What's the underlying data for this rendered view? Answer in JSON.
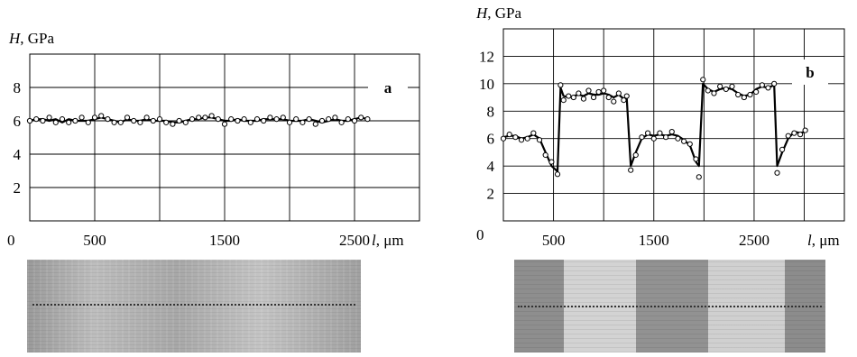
{
  "colors": {
    "line": "#000000",
    "grid": "#000000",
    "marker_fill": "#ffffff"
  },
  "chart_data": [
    {
      "type": "line",
      "panel_label": "a",
      "ylabel": "H, GPa",
      "xlabel": "l, μm",
      "origin_label": "0",
      "x_ticks": [
        "500",
        "1500",
        "2500"
      ],
      "y_ticks": [
        "2",
        "4",
        "6",
        "8"
      ],
      "xlim": [
        0,
        3000
      ],
      "ylim": [
        0,
        10
      ],
      "grid": true,
      "x": [
        0,
        50,
        100,
        150,
        200,
        250,
        300,
        350,
        400,
        450,
        500,
        550,
        600,
        650,
        700,
        750,
        800,
        850,
        900,
        950,
        1000,
        1050,
        1100,
        1150,
        1200,
        1250,
        1300,
        1350,
        1400,
        1450,
        1500,
        1550,
        1600,
        1650,
        1700,
        1750,
        1800,
        1850,
        1900,
        1950,
        2000,
        2050,
        2100,
        2150,
        2200,
        2250,
        2300,
        2350,
        2400,
        2450,
        2500,
        2550,
        2600
      ],
      "values": [
        6.0,
        6.1,
        6.1,
        6.0,
        6.1,
        5.9,
        6.1,
        6.0,
        6.0,
        6.0,
        6.1,
        6.2,
        6.1,
        6.0,
        5.9,
        6.1,
        6.0,
        6.0,
        6.1,
        6.0,
        6.0,
        6.0,
        5.9,
        5.9,
        6.0,
        6.1,
        6.1,
        6.2,
        6.2,
        6.1,
        6.0,
        6.0,
        6.1,
        6.0,
        6.0,
        6.0,
        6.1,
        6.1,
        6.1,
        6.1,
        6.0,
        6.0,
        6.0,
        6.1,
        6.0,
        5.9,
        6.0,
        6.1,
        6.0,
        6.0,
        6.1,
        6.2,
        6.1
      ],
      "points": [
        6.0,
        6.1,
        6.0,
        6.2,
        5.9,
        6.1,
        5.9,
        6.0,
        6.2,
        5.9,
        6.2,
        6.3,
        6.1,
        5.9,
        5.9,
        6.2,
        6.0,
        5.9,
        6.2,
        6.0,
        6.1,
        5.9,
        5.8,
        6.0,
        5.9,
        6.1,
        6.2,
        6.2,
        6.3,
        6.1,
        5.8,
        6.1,
        6.0,
        6.1,
        5.9,
        6.1,
        6.0,
        6.2,
        6.1,
        6.2,
        5.9,
        6.1,
        5.9,
        6.1,
        5.8,
        6.0,
        6.1,
        6.2,
        5.9,
        6.1,
        6.0,
        6.2,
        6.1
      ]
    },
    {
      "type": "line",
      "panel_label": "b",
      "ylabel": "H, GPa",
      "xlabel": "l, μm",
      "origin_label": "0",
      "x_ticks": [
        "500",
        "1500",
        "2500"
      ],
      "y_ticks": [
        "2",
        "4",
        "6",
        "8",
        "10",
        "12"
      ],
      "xlim": [
        0,
        3400
      ],
      "ylim": [
        0,
        14
      ],
      "grid": true,
      "x": [
        0,
        60,
        120,
        180,
        240,
        300,
        360,
        420,
        480,
        540,
        570,
        600,
        650,
        700,
        750,
        800,
        850,
        900,
        950,
        1000,
        1050,
        1100,
        1150,
        1200,
        1230,
        1270,
        1320,
        1380,
        1440,
        1500,
        1560,
        1620,
        1680,
        1740,
        1800,
        1860,
        1920,
        1950,
        1990,
        2040,
        2100,
        2160,
        2220,
        2280,
        2340,
        2400,
        2460,
        2520,
        2580,
        2640,
        2700,
        2730,
        2780,
        2840,
        2900,
        2960,
        3010
      ],
      "values": [
        6.1,
        6.2,
        6.2,
        6.0,
        6.1,
        6.3,
        6.0,
        5.0,
        4.0,
        3.6,
        9.7,
        9.1,
        9.0,
        9.1,
        9.2,
        9.1,
        9.3,
        9.2,
        9.2,
        9.3,
        9.2,
        9.0,
        9.2,
        8.9,
        9.0,
        4.0,
        5.0,
        6.0,
        6.3,
        6.2,
        6.3,
        6.2,
        6.3,
        6.2,
        5.9,
        5.5,
        4.3,
        4.0,
        10.0,
        9.6,
        9.4,
        9.6,
        9.7,
        9.6,
        9.3,
        9.1,
        9.2,
        9.6,
        9.8,
        9.7,
        9.9,
        4.0,
        5.0,
        6.0,
        6.5,
        6.4,
        6.5
      ],
      "points": [
        6.0,
        6.3,
        6.1,
        5.9,
        6.0,
        6.4,
        5.9,
        4.8,
        4.3,
        3.4,
        9.9,
        8.8,
        9.1,
        9.0,
        9.3,
        8.9,
        9.5,
        9.0,
        9.4,
        9.5,
        9.0,
        8.7,
        9.3,
        8.8,
        9.1,
        3.7,
        4.8,
        6.1,
        6.4,
        6.0,
        6.4,
        6.1,
        6.5,
        6.0,
        5.8,
        5.6,
        4.5,
        3.2,
        10.3,
        9.5,
        9.3,
        9.8,
        9.6,
        9.8,
        9.2,
        9.0,
        9.2,
        9.4,
        9.9,
        9.7,
        10.0,
        3.5,
        5.2,
        6.2,
        6.4,
        6.3,
        6.6
      ]
    }
  ]
}
